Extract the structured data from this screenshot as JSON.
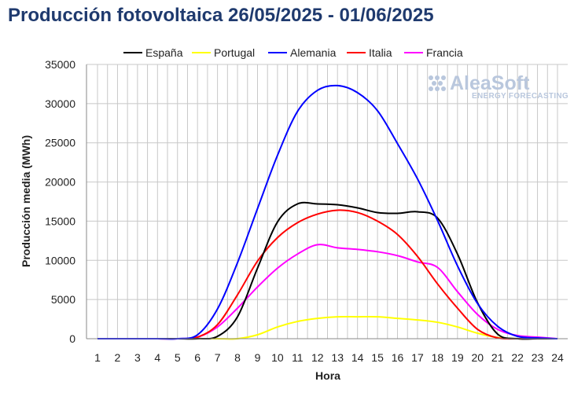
{
  "chart_data": {
    "type": "line",
    "title": "Producción fotovoltaica 26/05/2025 - 01/06/2025",
    "xlabel": "Hora",
    "ylabel": "Producción media (MWh)",
    "x": [
      1,
      2,
      3,
      4,
      5,
      6,
      7,
      8,
      9,
      10,
      11,
      12,
      13,
      14,
      15,
      16,
      17,
      18,
      19,
      20,
      21,
      22,
      23,
      24
    ],
    "xlim": [
      1,
      24
    ],
    "ylim": [
      0,
      35000
    ],
    "yticks": [
      0,
      5000,
      10000,
      15000,
      20000,
      25000,
      30000,
      35000
    ],
    "grid": true,
    "legend_position": "top",
    "series": [
      {
        "name": "España",
        "color": "#000000",
        "values": [
          0,
          0,
          0,
          0,
          0,
          0,
          300,
          2800,
          9000,
          14900,
          17200,
          17200,
          17100,
          16700,
          16100,
          16000,
          16200,
          15400,
          10800,
          4600,
          600,
          0,
          0,
          0
        ]
      },
      {
        "name": "Portugal",
        "color": "#ffff00",
        "values": [
          0,
          0,
          0,
          0,
          0,
          0,
          0,
          0,
          500,
          1500,
          2200,
          2600,
          2800,
          2800,
          2800,
          2600,
          2400,
          2100,
          1500,
          700,
          150,
          0,
          0,
          0
        ]
      },
      {
        "name": "Alemania",
        "color": "#0000ff",
        "values": [
          0,
          0,
          0,
          0,
          0,
          500,
          3800,
          9700,
          16600,
          23400,
          29000,
          31700,
          32300,
          31400,
          29100,
          24900,
          20400,
          15100,
          9300,
          4500,
          1600,
          300,
          100,
          0
        ]
      },
      {
        "name": "Italia",
        "color": "#ff0000",
        "values": [
          0,
          0,
          0,
          0,
          0,
          200,
          1800,
          5600,
          9900,
          12900,
          14800,
          15900,
          16400,
          16100,
          15000,
          13300,
          10500,
          7000,
          3900,
          1200,
          100,
          0,
          0,
          0
        ]
      },
      {
        "name": "Francia",
        "color": "#ff00ff",
        "values": [
          0,
          0,
          0,
          0,
          0,
          200,
          1500,
          3900,
          6600,
          9000,
          10800,
          12000,
          11600,
          11400,
          11100,
          10600,
          9800,
          9100,
          6000,
          3100,
          1200,
          400,
          200,
          0
        ]
      }
    ]
  },
  "watermark": {
    "brand": "AleaSoft",
    "tagline": "ENERGY FORECASTING"
  }
}
